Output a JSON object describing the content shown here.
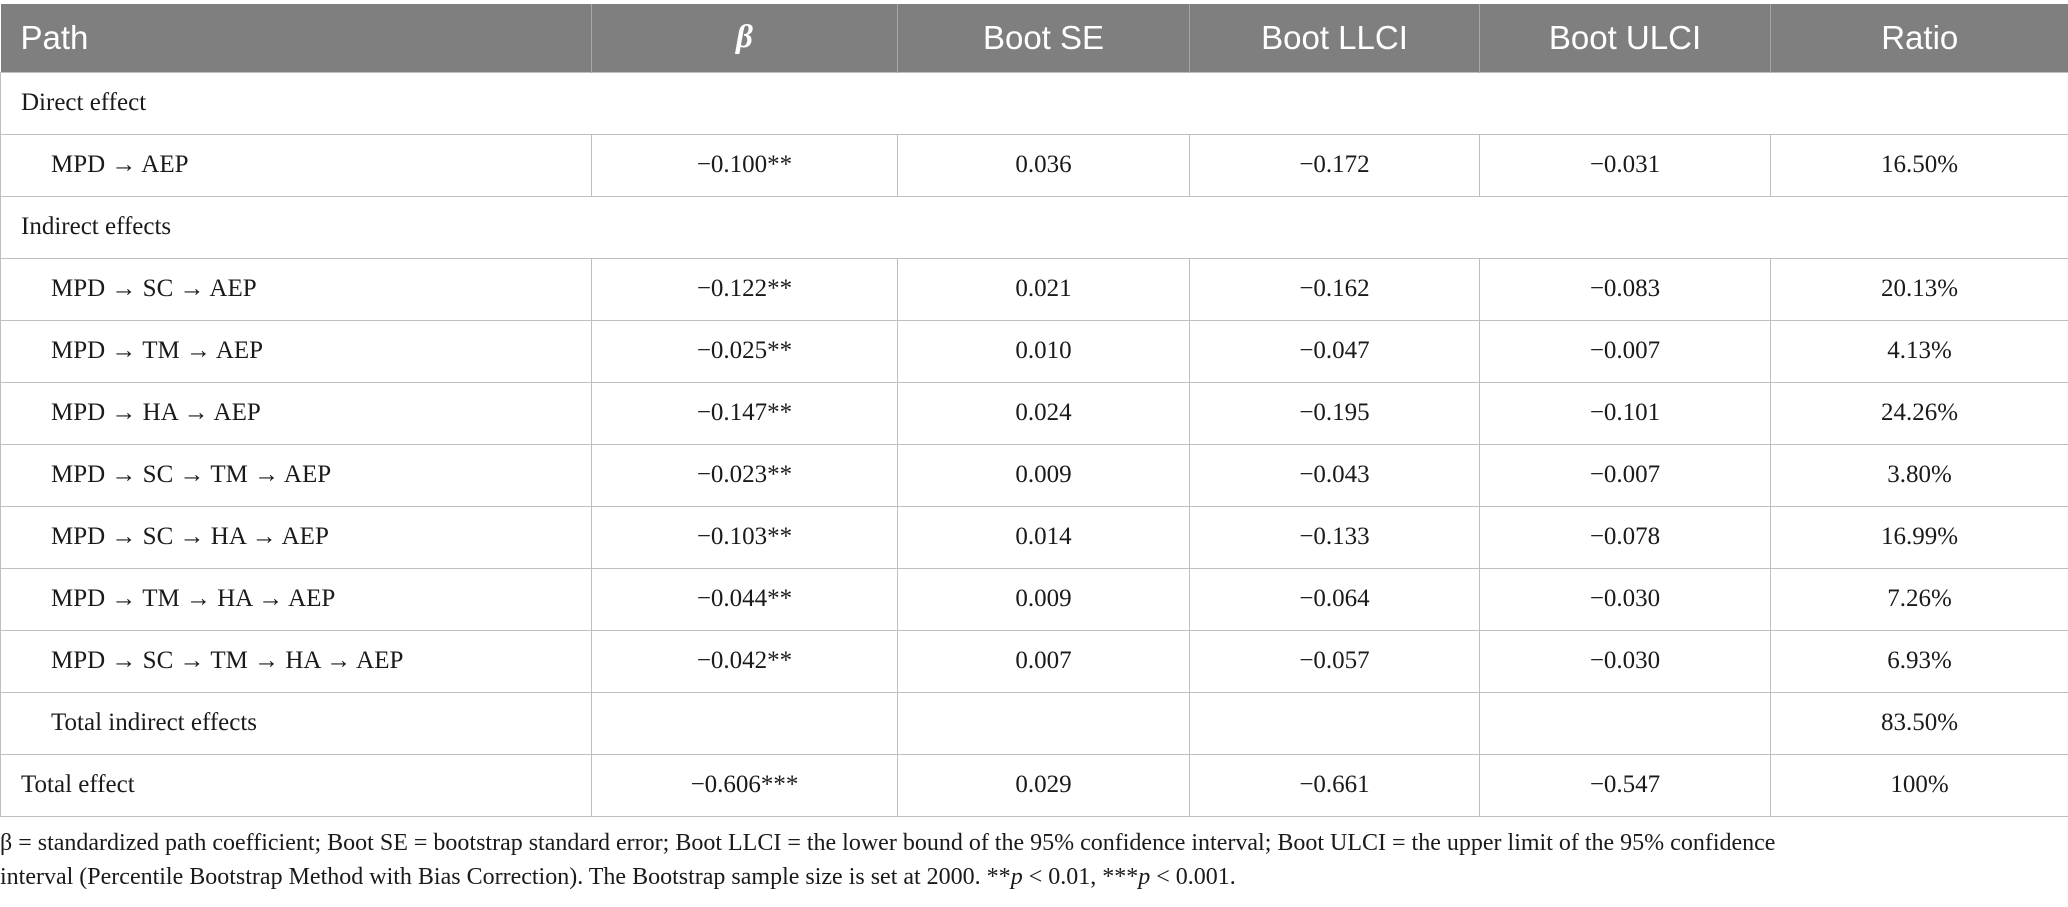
{
  "table": {
    "headers": [
      "Path",
      "β",
      "Boot SE",
      "Boot LLCI",
      "Boot ULCI",
      "Ratio"
    ],
    "direct_section_label": "Direct effect",
    "direct_row": [
      "MPD → AEP",
      "−0.100**",
      "0.036",
      "−0.172",
      "−0.031",
      "16.50%"
    ],
    "indirect_section_label": "Indirect effects",
    "indirect_rows": [
      [
        "MPD → SC → AEP",
        "−0.122**",
        "0.021",
        "−0.162",
        "−0.083",
        "20.13%"
      ],
      [
        "MPD → TM → AEP",
        "−0.025**",
        "0.010",
        "−0.047",
        "−0.007",
        "4.13%"
      ],
      [
        "MPD → HA → AEP",
        "−0.147**",
        "0.024",
        "−0.195",
        "−0.101",
        "24.26%"
      ],
      [
        "MPD → SC → TM → AEP",
        "−0.023**",
        "0.009",
        "−0.043",
        "−0.007",
        "3.80%"
      ],
      [
        "MPD → SC → HA → AEP",
        "−0.103**",
        "0.014",
        "−0.133",
        "−0.078",
        "16.99%"
      ],
      [
        "MPD → TM → HA → AEP",
        "−0.044**",
        "0.009",
        "−0.064",
        "−0.030",
        "7.26%"
      ],
      [
        "MPD → SC → TM → HA → AEP",
        "−0.042**",
        "0.007",
        "−0.057",
        "−0.030",
        "6.93%"
      ]
    ],
    "total_indirect_row": [
      "Total indirect effects",
      "",
      "",
      "",
      "",
      "83.50%"
    ],
    "total_row": [
      "Total effect",
      "−0.606***",
      "0.029",
      "−0.661",
      "−0.547",
      "100%"
    ]
  },
  "footnote": {
    "line1": "β = standardized path coefficient; Boot SE = bootstrap standard error; Boot LLCI = the lower bound of the 95% confidence interval; Boot ULCI = the upper limit of the 95% confidence",
    "line2_pre": "interval (Percentile Bootstrap Method with Bias Correction). The Bootstrap sample size is set at 2000. **",
    "p1": "p",
    "line2_mid": " < 0.01, ***",
    "p2": "p",
    "line2_post": " < 0.001."
  }
}
